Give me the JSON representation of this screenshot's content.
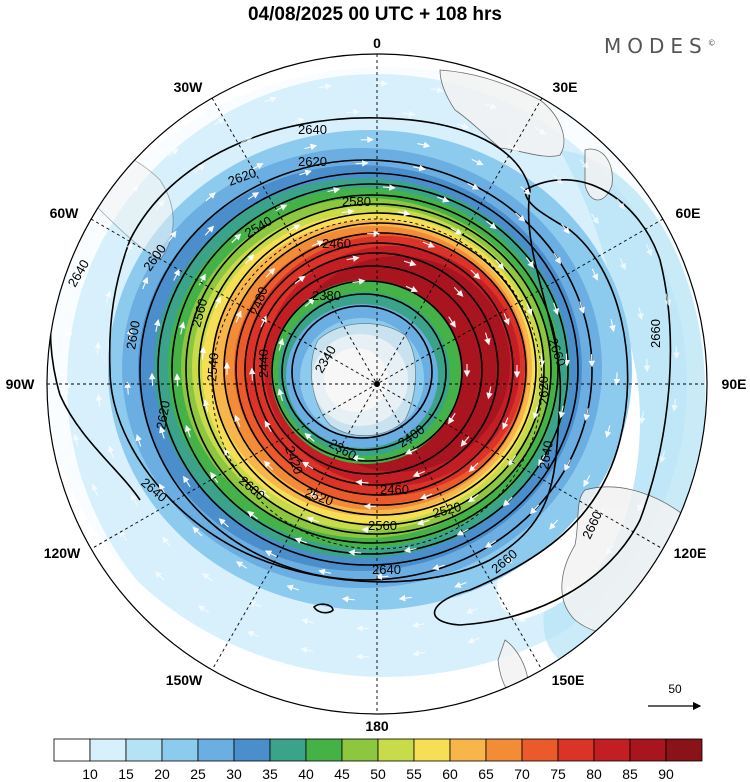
{
  "title": "04/08/2025  00 UTC  + 108 hrs",
  "brand": {
    "text": "MODES",
    "mark": "©"
  },
  "map": {
    "projection": "polar-stereographic-south",
    "longitude_labels": [
      {
        "id": "lon-0",
        "text": "0"
      },
      {
        "id": "lon-30e",
        "text": "30E"
      },
      {
        "id": "lon-60e",
        "text": "60E"
      },
      {
        "id": "lon-90e",
        "text": "90E"
      },
      {
        "id": "lon-120e",
        "text": "120E"
      },
      {
        "id": "lon-150e",
        "text": "150E"
      },
      {
        "id": "lon-180",
        "text": "180"
      },
      {
        "id": "lon-150w",
        "text": "150W"
      },
      {
        "id": "lon-120w",
        "text": "120W"
      },
      {
        "id": "lon-90w",
        "text": "90W"
      },
      {
        "id": "lon-60w",
        "text": "60W"
      },
      {
        "id": "lon-30w",
        "text": "30W"
      }
    ],
    "contour_labels": [
      {
        "text": "2640"
      },
      {
        "text": "2620"
      },
      {
        "text": "2620"
      },
      {
        "text": "2580"
      },
      {
        "text": "2540"
      },
      {
        "text": "2460"
      },
      {
        "text": "2600"
      },
      {
        "text": "2640"
      },
      {
        "text": "2560"
      },
      {
        "text": "2480"
      },
      {
        "text": "2380"
      },
      {
        "text": "2600"
      },
      {
        "text": "2340"
      },
      {
        "text": "2440"
      },
      {
        "text": "2540"
      },
      {
        "text": "2620"
      },
      {
        "text": "2420"
      },
      {
        "text": "2360"
      },
      {
        "text": "2400"
      },
      {
        "text": "2640"
      },
      {
        "text": "2600"
      },
      {
        "text": "2460"
      },
      {
        "text": "2520"
      },
      {
        "text": "2560"
      },
      {
        "text": "2520"
      },
      {
        "text": "2640"
      },
      {
        "text": "2660"
      },
      {
        "text": "2660"
      },
      {
        "text": "2660"
      },
      {
        "text": "2620"
      },
      {
        "text": "2640"
      },
      {
        "text": "2660"
      }
    ],
    "colors": {
      "land": "#f2f2f2",
      "coast": "#555555",
      "contour": "#000000",
      "vectors": "#ffffff"
    }
  },
  "vector_reference": {
    "value": "50"
  },
  "colorbar": {
    "labels": [
      "10",
      "15",
      "20",
      "25",
      "30",
      "35",
      "40",
      "45",
      "50",
      "55",
      "60",
      "65",
      "70",
      "75",
      "80",
      "85",
      "90"
    ],
    "colors": [
      "#ffffff",
      "#d7f0fb",
      "#b5e2f5",
      "#8ccaee",
      "#6aaee2",
      "#4a8fcb",
      "#3aa38a",
      "#45b248",
      "#8dc63f",
      "#c8dc49",
      "#f7df55",
      "#f8b54a",
      "#f38c36",
      "#ea5a2a",
      "#db3328",
      "#c41e25",
      "#a8151f",
      "#8a1219"
    ]
  }
}
